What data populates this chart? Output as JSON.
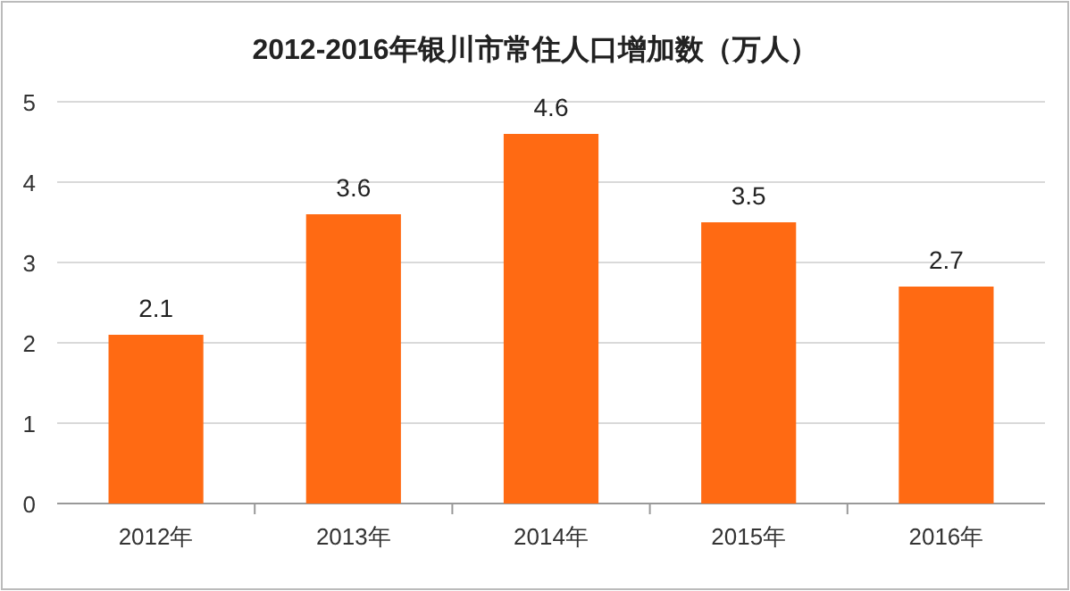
{
  "chart_data": {
    "type": "bar",
    "title": "2012-2016年银川市常住人口增加数（万人）",
    "categories": [
      "2012年",
      "2013年",
      "2014年",
      "2015年",
      "2016年"
    ],
    "values": [
      2.1,
      3.6,
      4.6,
      3.5,
      2.7
    ],
    "color": "#ff6a13",
    "ylim": [
      0,
      5
    ],
    "yticks": [
      0,
      1,
      2,
      3,
      4,
      5
    ],
    "grid": "y",
    "data_labels": true
  }
}
